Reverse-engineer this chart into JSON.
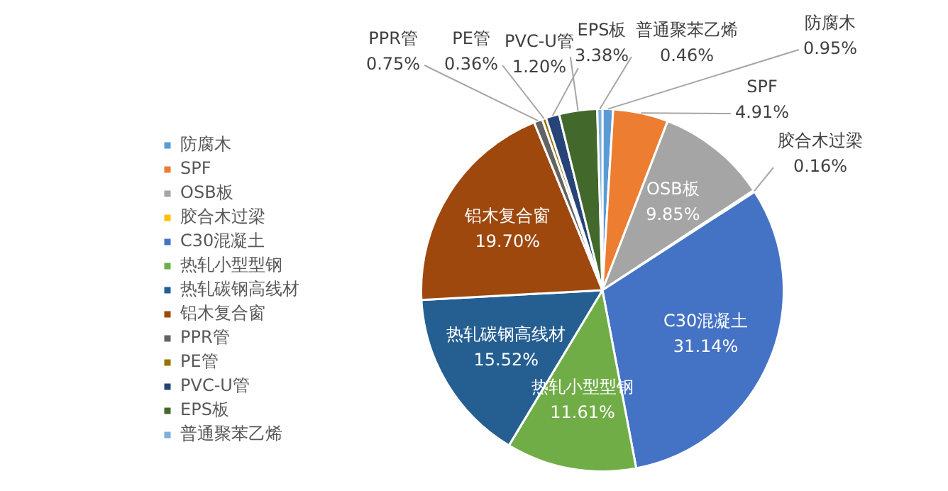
{
  "chart_data": {
    "type": "pie",
    "categories": [
      "防腐木",
      "SPF",
      "OSB板",
      "胶合木过梁",
      "C30混凝土",
      "热轧小型型钢",
      "热轧碳钢高线材",
      "铝木复合窗",
      "PPR管",
      "PE管",
      "PVC-U管",
      "EPS板",
      "普通聚苯乙烯"
    ],
    "values": [
      0.95,
      4.91,
      9.85,
      0.16,
      31.14,
      11.61,
      15.52,
      19.7,
      0.75,
      0.36,
      1.2,
      3.38,
      0.46
    ],
    "value_labels": [
      "0.95%",
      "4.91%",
      "9.85%",
      "0.16%",
      "31.14%",
      "11.61%",
      "15.52%",
      "19.70%",
      "0.75%",
      "0.36%",
      "1.20%",
      "3.38%",
      "0.46%"
    ],
    "colors": [
      "#5b9bd5",
      "#ed7d31",
      "#a5a5a5",
      "#ffc000",
      "#4472c4",
      "#70ad47",
      "#255e91",
      "#9e480e",
      "#636363",
      "#997300",
      "#264478",
      "#43682b",
      "#7cafdd"
    ],
    "legend": "left"
  }
}
